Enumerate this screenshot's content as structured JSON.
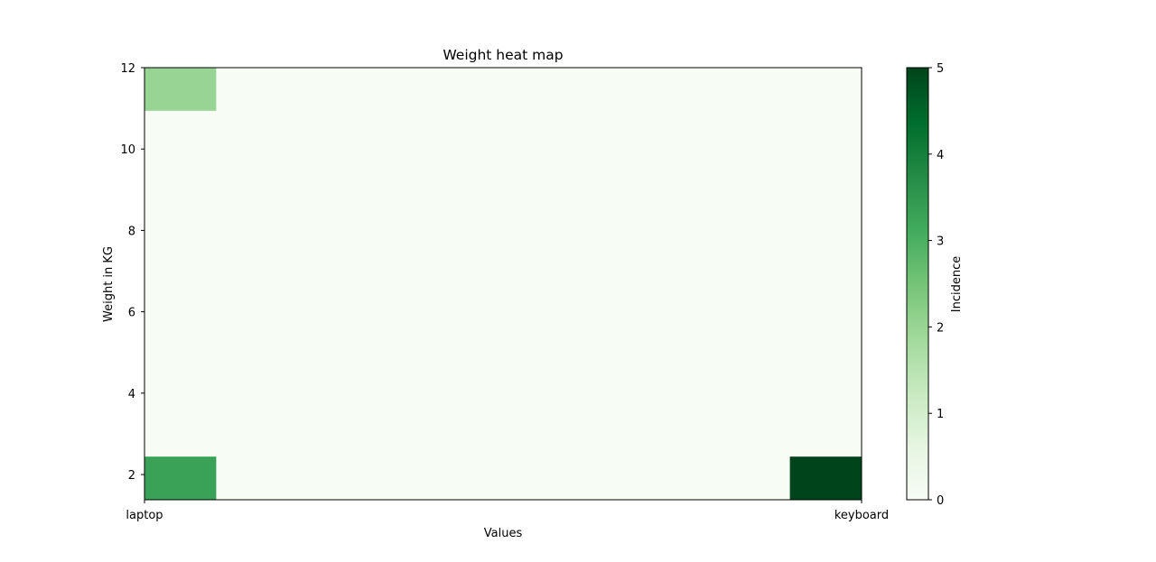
{
  "chart_data": {
    "type": "heatmap",
    "title": "Weight heat map",
    "xlabel": "Values",
    "ylabel": "Weight in KG",
    "colorbar_label": "Incidence",
    "x_tick_labels": [
      "laptop",
      "keyboard"
    ],
    "xlim": [
      0,
      1
    ],
    "ylim": [
      1.38,
      12
    ],
    "y_ticks": [
      2,
      4,
      6,
      8,
      10,
      12
    ],
    "colorbar_ticks": [
      0,
      1,
      2,
      3,
      4,
      5
    ],
    "clim": [
      0,
      5
    ],
    "colormap": "Greens",
    "background_color": "#f7fcf5",
    "grid": false,
    "legend": "colorbar-right",
    "cells": [
      {
        "x_range": [
          0,
          0.1
        ],
        "y_range": [
          10.94,
          12
        ],
        "value": 2
      },
      {
        "x_range": [
          0,
          0.1
        ],
        "y_range": [
          1.38,
          2.44
        ],
        "value": 3.3
      },
      {
        "x_range": [
          0.9,
          1
        ],
        "y_range": [
          1.38,
          2.44
        ],
        "value": 5
      }
    ]
  }
}
